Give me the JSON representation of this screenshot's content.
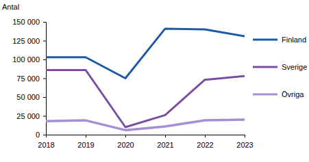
{
  "chart_data": {
    "type": "line",
    "y_label": "Antal",
    "categories": [
      "2018",
      "2019",
      "2020",
      "2021",
      "2022",
      "2023"
    ],
    "series": [
      {
        "name": "Finland",
        "color": "#1f5aa6",
        "values": [
          103000,
          103000,
          75000,
          141000,
          140000,
          131000
        ]
      },
      {
        "name": "Sverige",
        "color": "#7b4fa0",
        "values": [
          86000,
          86000,
          10000,
          26000,
          73000,
          78000
        ]
      },
      {
        "name": "Övriga",
        "color": "#a68ed2",
        "values": [
          18000,
          19000,
          6000,
          11000,
          19000,
          20000
        ]
      }
    ],
    "ylim": [
      0,
      150000
    ],
    "yticks": [
      0,
      {
        "value": 25000,
        "label": "25 000"
      },
      {
        "value": 50000,
        "label": "50 000"
      },
      {
        "value": 75000,
        "label": "75 000"
      },
      {
        "value": 100000,
        "label": "100 000"
      },
      {
        "value": 125000,
        "label": "125 000"
      },
      {
        "value": 150000,
        "label": "150 000"
      }
    ],
    "grid": false,
    "legend": "right"
  }
}
